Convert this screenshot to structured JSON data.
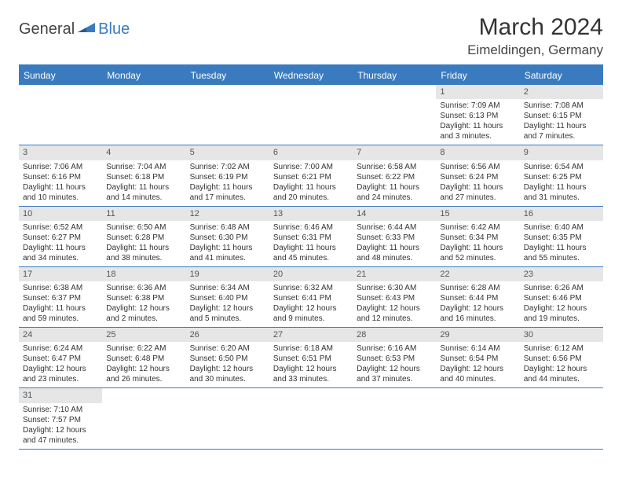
{
  "logo": {
    "text_general": "General",
    "text_blue": "Blue",
    "shape_color": "#3a7bbf"
  },
  "header": {
    "month_title": "March 2024",
    "location": "Eimeldingen, Germany"
  },
  "colors": {
    "header_bg": "#3a7bbf",
    "daynum_bg": "#e6e6e6",
    "border": "#3a7bbf",
    "background": "#ffffff"
  },
  "day_names": [
    "Sunday",
    "Monday",
    "Tuesday",
    "Wednesday",
    "Thursday",
    "Friday",
    "Saturday"
  ],
  "weeks": [
    [
      null,
      null,
      null,
      null,
      null,
      {
        "n": "1",
        "sr": "Sunrise: 7:09 AM",
        "ss": "Sunset: 6:13 PM",
        "dl": "Daylight: 11 hours and 3 minutes."
      },
      {
        "n": "2",
        "sr": "Sunrise: 7:08 AM",
        "ss": "Sunset: 6:15 PM",
        "dl": "Daylight: 11 hours and 7 minutes."
      }
    ],
    [
      {
        "n": "3",
        "sr": "Sunrise: 7:06 AM",
        "ss": "Sunset: 6:16 PM",
        "dl": "Daylight: 11 hours and 10 minutes."
      },
      {
        "n": "4",
        "sr": "Sunrise: 7:04 AM",
        "ss": "Sunset: 6:18 PM",
        "dl": "Daylight: 11 hours and 14 minutes."
      },
      {
        "n": "5",
        "sr": "Sunrise: 7:02 AM",
        "ss": "Sunset: 6:19 PM",
        "dl": "Daylight: 11 hours and 17 minutes."
      },
      {
        "n": "6",
        "sr": "Sunrise: 7:00 AM",
        "ss": "Sunset: 6:21 PM",
        "dl": "Daylight: 11 hours and 20 minutes."
      },
      {
        "n": "7",
        "sr": "Sunrise: 6:58 AM",
        "ss": "Sunset: 6:22 PM",
        "dl": "Daylight: 11 hours and 24 minutes."
      },
      {
        "n": "8",
        "sr": "Sunrise: 6:56 AM",
        "ss": "Sunset: 6:24 PM",
        "dl": "Daylight: 11 hours and 27 minutes."
      },
      {
        "n": "9",
        "sr": "Sunrise: 6:54 AM",
        "ss": "Sunset: 6:25 PM",
        "dl": "Daylight: 11 hours and 31 minutes."
      }
    ],
    [
      {
        "n": "10",
        "sr": "Sunrise: 6:52 AM",
        "ss": "Sunset: 6:27 PM",
        "dl": "Daylight: 11 hours and 34 minutes."
      },
      {
        "n": "11",
        "sr": "Sunrise: 6:50 AM",
        "ss": "Sunset: 6:28 PM",
        "dl": "Daylight: 11 hours and 38 minutes."
      },
      {
        "n": "12",
        "sr": "Sunrise: 6:48 AM",
        "ss": "Sunset: 6:30 PM",
        "dl": "Daylight: 11 hours and 41 minutes."
      },
      {
        "n": "13",
        "sr": "Sunrise: 6:46 AM",
        "ss": "Sunset: 6:31 PM",
        "dl": "Daylight: 11 hours and 45 minutes."
      },
      {
        "n": "14",
        "sr": "Sunrise: 6:44 AM",
        "ss": "Sunset: 6:33 PM",
        "dl": "Daylight: 11 hours and 48 minutes."
      },
      {
        "n": "15",
        "sr": "Sunrise: 6:42 AM",
        "ss": "Sunset: 6:34 PM",
        "dl": "Daylight: 11 hours and 52 minutes."
      },
      {
        "n": "16",
        "sr": "Sunrise: 6:40 AM",
        "ss": "Sunset: 6:35 PM",
        "dl": "Daylight: 11 hours and 55 minutes."
      }
    ],
    [
      {
        "n": "17",
        "sr": "Sunrise: 6:38 AM",
        "ss": "Sunset: 6:37 PM",
        "dl": "Daylight: 11 hours and 59 minutes."
      },
      {
        "n": "18",
        "sr": "Sunrise: 6:36 AM",
        "ss": "Sunset: 6:38 PM",
        "dl": "Daylight: 12 hours and 2 minutes."
      },
      {
        "n": "19",
        "sr": "Sunrise: 6:34 AM",
        "ss": "Sunset: 6:40 PM",
        "dl": "Daylight: 12 hours and 5 minutes."
      },
      {
        "n": "20",
        "sr": "Sunrise: 6:32 AM",
        "ss": "Sunset: 6:41 PM",
        "dl": "Daylight: 12 hours and 9 minutes."
      },
      {
        "n": "21",
        "sr": "Sunrise: 6:30 AM",
        "ss": "Sunset: 6:43 PM",
        "dl": "Daylight: 12 hours and 12 minutes."
      },
      {
        "n": "22",
        "sr": "Sunrise: 6:28 AM",
        "ss": "Sunset: 6:44 PM",
        "dl": "Daylight: 12 hours and 16 minutes."
      },
      {
        "n": "23",
        "sr": "Sunrise: 6:26 AM",
        "ss": "Sunset: 6:46 PM",
        "dl": "Daylight: 12 hours and 19 minutes."
      }
    ],
    [
      {
        "n": "24",
        "sr": "Sunrise: 6:24 AM",
        "ss": "Sunset: 6:47 PM",
        "dl": "Daylight: 12 hours and 23 minutes."
      },
      {
        "n": "25",
        "sr": "Sunrise: 6:22 AM",
        "ss": "Sunset: 6:48 PM",
        "dl": "Daylight: 12 hours and 26 minutes."
      },
      {
        "n": "26",
        "sr": "Sunrise: 6:20 AM",
        "ss": "Sunset: 6:50 PM",
        "dl": "Daylight: 12 hours and 30 minutes."
      },
      {
        "n": "27",
        "sr": "Sunrise: 6:18 AM",
        "ss": "Sunset: 6:51 PM",
        "dl": "Daylight: 12 hours and 33 minutes."
      },
      {
        "n": "28",
        "sr": "Sunrise: 6:16 AM",
        "ss": "Sunset: 6:53 PM",
        "dl": "Daylight: 12 hours and 37 minutes."
      },
      {
        "n": "29",
        "sr": "Sunrise: 6:14 AM",
        "ss": "Sunset: 6:54 PM",
        "dl": "Daylight: 12 hours and 40 minutes."
      },
      {
        "n": "30",
        "sr": "Sunrise: 6:12 AM",
        "ss": "Sunset: 6:56 PM",
        "dl": "Daylight: 12 hours and 44 minutes."
      }
    ],
    [
      {
        "n": "31",
        "sr": "Sunrise: 7:10 AM",
        "ss": "Sunset: 7:57 PM",
        "dl": "Daylight: 12 hours and 47 minutes."
      },
      null,
      null,
      null,
      null,
      null,
      null
    ]
  ]
}
